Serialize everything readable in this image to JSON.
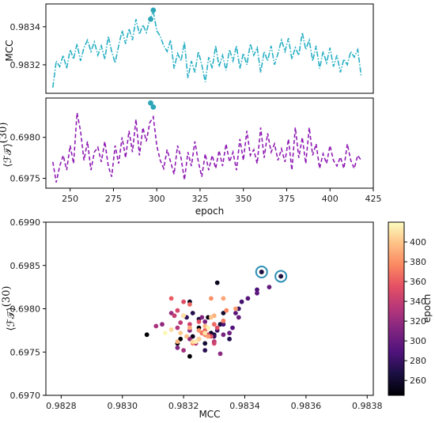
{
  "chart_data": [
    {
      "type": "line",
      "panel": "top",
      "xlabel": "",
      "ylabel": "MCC",
      "xlim": [
        236,
        425
      ],
      "ylim": [
        0.98305,
        0.98352
      ],
      "yticks": [
        "0.9832",
        "0.9834"
      ],
      "ytick_values": [
        0.9832,
        0.9834
      ],
      "grid": false,
      "series": [
        {
          "color": "#2bb0c5",
          "style": "dash-dot",
          "x": [
            240,
            242,
            244,
            246,
            248,
            250,
            252,
            254,
            256,
            258,
            260,
            262,
            264,
            266,
            268,
            270,
            272,
            274,
            276,
            278,
            280,
            282,
            284,
            286,
            288,
            290,
            292,
            294,
            296,
            298,
            300,
            302,
            304,
            306,
            308,
            310,
            312,
            314,
            316,
            318,
            320,
            322,
            324,
            326,
            328,
            330,
            332,
            334,
            336,
            338,
            340,
            342,
            344,
            346,
            348,
            350,
            352,
            354,
            356,
            358,
            360,
            362,
            364,
            366,
            368,
            370,
            372,
            374,
            376,
            378,
            380,
            382,
            384,
            386,
            388,
            390,
            392,
            394,
            396,
            398,
            400,
            402,
            404,
            406,
            408,
            410,
            412,
            414,
            416,
            418
          ],
          "values": [
            0.98308,
            0.98322,
            0.98319,
            0.98325,
            0.98318,
            0.98328,
            0.98323,
            0.98331,
            0.98322,
            0.98329,
            0.98333,
            0.98327,
            0.98332,
            0.98325,
            0.9833,
            0.98323,
            0.98335,
            0.98327,
            0.98321,
            0.9833,
            0.98338,
            0.98331,
            0.98339,
            0.98333,
            0.98344,
            0.98336,
            0.98341,
            0.98337,
            0.98344,
            0.98348,
            0.98338,
            0.98335,
            0.9833,
            0.98327,
            0.98333,
            0.98318,
            0.98326,
            0.98322,
            0.98332,
            0.98313,
            0.98322,
            0.98316,
            0.98327,
            0.9832,
            0.98311,
            0.98324,
            0.98318,
            0.9833,
            0.98319,
            0.98325,
            0.98317,
            0.98328,
            0.98322,
            0.9833,
            0.98318,
            0.98326,
            0.9832,
            0.98331,
            0.98325,
            0.98329,
            0.98316,
            0.98327,
            0.98322,
            0.9833,
            0.9832,
            0.98326,
            0.98333,
            0.98327,
            0.98334,
            0.98323,
            0.98329,
            0.98325,
            0.98337,
            0.98328,
            0.98333,
            0.98322,
            0.9833,
            0.98318,
            0.98327,
            0.98321,
            0.98329,
            0.98319,
            0.98325,
            0.98316,
            0.98323,
            0.9832,
            0.98327,
            0.98324,
            0.98328,
            0.98314
          ]
        }
      ],
      "highlight_points": [
        {
          "x": 296.5,
          "y": 0.98344
        },
        {
          "x": 298,
          "y": 0.983487
        }
      ],
      "highlight_color": "#2ea6b8"
    },
    {
      "type": "line",
      "panel": "middle",
      "xlabel": "epoch",
      "ylabel": "⟨ℱ𝒯⟩",
      "ylabel_sup": "(30)",
      "xlim": [
        236,
        425
      ],
      "ylim": [
        0.69738,
        0.69848
      ],
      "xticks": [
        "250",
        "275",
        "300",
        "325",
        "350",
        "375",
        "400",
        "425"
      ],
      "xtick_values": [
        250,
        275,
        300,
        325,
        350,
        375,
        400,
        425
      ],
      "yticks": [
        "0.6975",
        "0.6980"
      ],
      "ytick_values": [
        0.6975,
        0.698
      ],
      "grid": false,
      "series": [
        {
          "color": "#8e1bb3",
          "style": "dashed",
          "x": [
            240,
            242,
            244,
            246,
            248,
            250,
            252,
            254,
            256,
            258,
            260,
            262,
            264,
            266,
            268,
            270,
            272,
            274,
            276,
            278,
            280,
            282,
            284,
            286,
            288,
            290,
            292,
            294,
            296,
            298,
            300,
            302,
            304,
            306,
            308,
            310,
            312,
            314,
            316,
            318,
            320,
            322,
            324,
            326,
            328,
            330,
            332,
            334,
            336,
            338,
            340,
            342,
            344,
            346,
            348,
            350,
            352,
            354,
            356,
            358,
            360,
            362,
            364,
            366,
            368,
            370,
            372,
            374,
            376,
            378,
            380,
            382,
            384,
            386,
            388,
            390,
            392,
            394,
            396,
            398,
            400,
            402,
            404,
            406,
            408,
            410,
            412,
            414,
            416,
            418
          ],
          "values": [
            0.6977,
            0.69745,
            0.69765,
            0.69778,
            0.6976,
            0.6979,
            0.69768,
            0.6983,
            0.69808,
            0.69772,
            0.69795,
            0.6976,
            0.69782,
            0.69788,
            0.6977,
            0.69795,
            0.69765,
            0.69752,
            0.6979,
            0.69768,
            0.698,
            0.69775,
            0.69808,
            0.69782,
            0.69822,
            0.69778,
            0.69812,
            0.69795,
            0.69818,
            0.69825,
            0.6979,
            0.69772,
            0.69762,
            0.69785,
            0.6977,
            0.69755,
            0.6979,
            0.69775,
            0.69748,
            0.69782,
            0.69765,
            0.69795,
            0.6977,
            0.69752,
            0.6978,
            0.6976,
            0.69778,
            0.69762,
            0.69784,
            0.69765,
            0.69792,
            0.6977,
            0.69782,
            0.6976,
            0.69798,
            0.69772,
            0.69808,
            0.69778,
            0.69785,
            0.69768,
            0.69812,
            0.69775,
            0.69805,
            0.69782,
            0.69792,
            0.69772,
            0.69786,
            0.6977,
            0.69798,
            0.6976,
            0.69812,
            0.69775,
            0.698,
            0.69768,
            0.69812,
            0.69778,
            0.69792,
            0.69762,
            0.6978,
            0.69768,
            0.6979,
            0.69772,
            0.69765,
            0.69776,
            0.69762,
            0.69792,
            0.69772,
            0.69762,
            0.69778,
            0.69772
          ]
        }
      ],
      "highlight_points": [
        {
          "x": 296.5,
          "y": 0.69842
        },
        {
          "x": 298,
          "y": 0.69837
        }
      ],
      "highlight_color": "#2ea6b8"
    },
    {
      "type": "scatter",
      "panel": "bottom",
      "xlabel": "MCC",
      "ylabel": "⟨ℱ𝒯⟩",
      "ylabel_sup": "(30)",
      "xlim": [
        0.98275,
        0.98382
      ],
      "ylim": [
        0.697,
        0.699
      ],
      "xticks": [
        "0.9828",
        "0.9830",
        "0.9832",
        "0.9834",
        "0.9836",
        "0.9838"
      ],
      "xtick_values": [
        0.9828,
        0.983,
        0.9832,
        0.9834,
        0.9836,
        0.9838
      ],
      "yticks": [
        "0.6970",
        "0.6975",
        "0.6980",
        "0.6985",
        "0.6990"
      ],
      "ytick_values": [
        0.697,
        0.6975,
        0.698,
        0.6985,
        0.699
      ],
      "grid": false,
      "colormap": "magma",
      "colorbar": {
        "label": "epoch",
        "range": [
          245,
          420
        ],
        "ticks": [
          "260",
          "280",
          "300",
          "320",
          "340",
          "360",
          "380",
          "400"
        ],
        "tick_values": [
          260,
          280,
          300,
          320,
          340,
          360,
          380,
          400
        ]
      },
      "circled_points": [
        {
          "x": 0.983455,
          "y": 0.698425
        },
        {
          "x": 0.983518,
          "y": 0.698375
        }
      ],
      "circle_color": "#2a8fb5",
      "points_note": "scatter pairs MCC vs FT for each epoch; color = epoch"
    }
  ]
}
